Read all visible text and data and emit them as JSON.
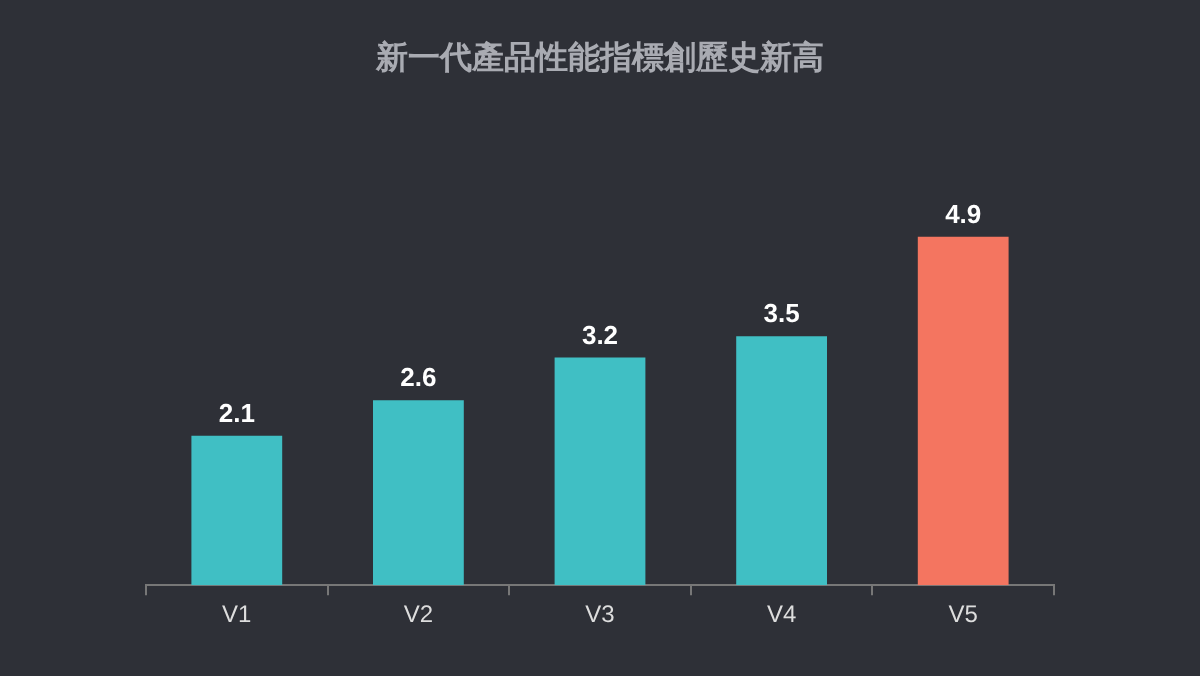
{
  "chart_data": {
    "type": "bar",
    "title": "新一代產品性能指標創歷史新高",
    "categories": [
      "V1",
      "V2",
      "V3",
      "V4",
      "V5"
    ],
    "values": [
      2.1,
      2.6,
      3.2,
      3.5,
      4.9
    ],
    "colors": [
      "#40bfc4",
      "#40bfc4",
      "#40bfc4",
      "#40bfc4",
      "#f47560"
    ],
    "data_labels": true
  }
}
